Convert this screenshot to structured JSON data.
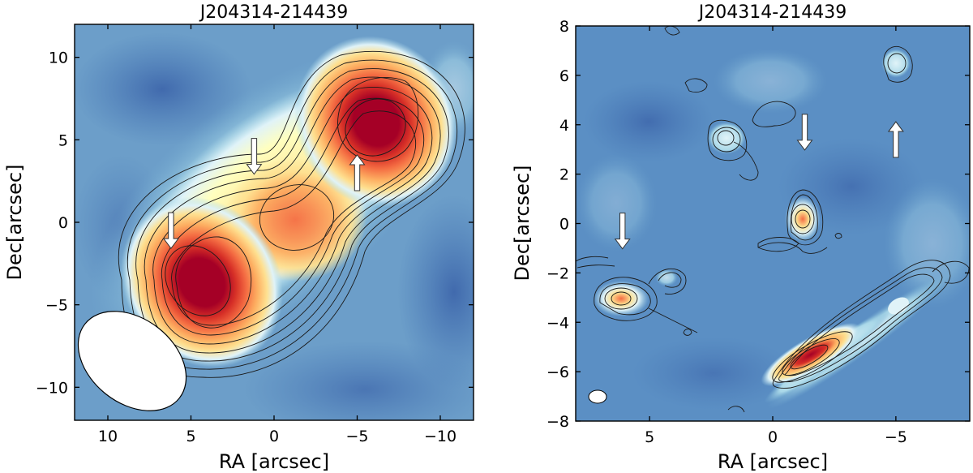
{
  "chart_data": [
    {
      "type": "heatmap",
      "title": "J204314-214439",
      "xlabel": "RA [arcsec]",
      "ylabel": "Dec[arcsec]",
      "xlim": [
        12,
        -12
      ],
      "ylim": [
        -12,
        12
      ],
      "xticks": [
        10,
        5,
        0,
        -5,
        -10
      ],
      "yticks": [
        10,
        5,
        0,
        -5,
        -10
      ],
      "xtick_labels": [
        "10",
        "5",
        "0",
        "−5",
        "−10"
      ],
      "ytick_labels": [
        "10",
        "5",
        "0",
        "−5",
        "−10"
      ],
      "colormap": "RdYlBu_r",
      "sources": [
        {
          "ra": 3.8,
          "dec": -3.8,
          "peak": 1.0
        },
        {
          "ra": -1.8,
          "dec": 0.2,
          "peak": 0.65
        },
        {
          "ra": -6.2,
          "dec": 5.8,
          "peak": 1.0
        }
      ],
      "arrows": [
        {
          "ra": 6.2,
          "dec": -0.5,
          "direction": "down"
        },
        {
          "ra": 1.2,
          "dec": 4.0,
          "direction": "down"
        },
        {
          "ra": -5.0,
          "dec": 3.0,
          "direction": "up"
        }
      ],
      "beam": {
        "ra": 8.0,
        "dec": -8.5
      }
    },
    {
      "type": "heatmap",
      "title": "J204314-214439",
      "xlabel": "RA [arcsec]",
      "ylabel": "Dec[arcsec]",
      "xlim": [
        8,
        -8
      ],
      "ylim": [
        -8,
        8
      ],
      "xticks": [
        5,
        0,
        -5
      ],
      "yticks": [
        8,
        6,
        4,
        2,
        0,
        -2,
        -4,
        -6,
        -8
      ],
      "xtick_labels": [
        "5",
        "0",
        "−5"
      ],
      "ytick_labels": [
        "8",
        "6",
        "4",
        "2",
        "0",
        "−2",
        "−4",
        "−6",
        "−8"
      ],
      "colormap": "RdYlBu_r",
      "sources": [
        {
          "ra": 6.1,
          "dec": -3.1,
          "peak": 0.62
        },
        {
          "ra": 4.4,
          "dec": -2.3,
          "peak": 0.3
        },
        {
          "ra": 1.7,
          "dec": 3.4,
          "peak": 0.42
        },
        {
          "ra": -1.2,
          "dec": 0.2,
          "peak": 0.6
        },
        {
          "ra": -4.9,
          "dec": 6.4,
          "peak": 0.42
        },
        {
          "ra": 2.9,
          "dec": 5.7,
          "peak": 0.18
        },
        {
          "ra": -2.0,
          "dec": -5.5,
          "peak": 1.0
        }
      ],
      "arrows": [
        {
          "ra": 6.1,
          "dec": -0.3,
          "direction": "down"
        },
        {
          "ra": -1.3,
          "dec": 3.7,
          "direction": "down"
        },
        {
          "ra": -5.0,
          "dec": 3.4,
          "direction": "up"
        }
      ],
      "beam": {
        "ra": 6.9,
        "dec": -7.0
      }
    }
  ]
}
